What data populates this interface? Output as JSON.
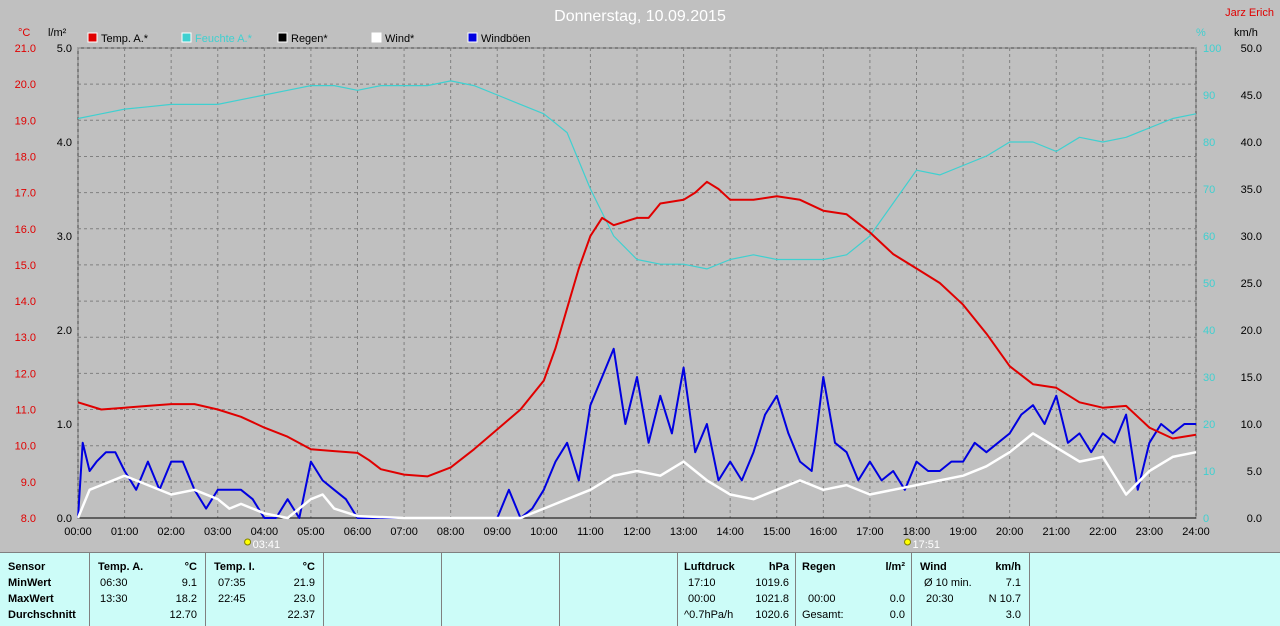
{
  "header": {
    "title": "Donnerstag, 10.09.2015",
    "author": "Jarz Erich"
  },
  "colors": {
    "temp": "#e00000",
    "humidity": "#3fd0d0",
    "rain": "#000000",
    "wind": "#ffffff",
    "gusts": "#0000e0",
    "plot_bg": "#c0c0c0"
  },
  "chart_data": {
    "type": "line",
    "title": "Donnerstag, 10.09.2015",
    "x_ticks": [
      "00:00",
      "01:00",
      "02:00",
      "03:00",
      "04:00",
      "05:00",
      "06:00",
      "07:00",
      "08:00",
      "09:00",
      "10:00",
      "11:00",
      "12:00",
      "13:00",
      "14:00",
      "15:00",
      "16:00",
      "17:00",
      "18:00",
      "19:00",
      "20:00",
      "21:00",
      "22:00",
      "23:00",
      "24:00"
    ],
    "axes": {
      "temp": {
        "unit": "°C",
        "ylim": [
          8.0,
          21.0
        ],
        "ticks": [
          "21.0",
          "20.0",
          "19.0",
          "18.0",
          "17.0",
          "16.0",
          "15.0",
          "14.0",
          "13.0",
          "12.0",
          "11.0",
          "10.0",
          "9.0",
          "8.0"
        ]
      },
      "rain": {
        "unit": "l/m²",
        "ylim": [
          0.0,
          5.0
        ],
        "ticks": [
          "5.0",
          "4.0",
          "3.0",
          "2.0",
          "1.0",
          "0.0"
        ]
      },
      "humidity": {
        "unit": "%",
        "ylim": [
          0,
          100
        ],
        "ticks": [
          "100",
          "90",
          "80",
          "70",
          "60",
          "50",
          "40",
          "30",
          "20",
          "10",
          "0"
        ]
      },
      "wind": {
        "unit": "km/h",
        "ylim": [
          0.0,
          50.0
        ],
        "ticks": [
          "50.0",
          "45.0",
          "40.0",
          "35.0",
          "30.0",
          "25.0",
          "20.0",
          "15.0",
          "10.0",
          "5.0",
          "0.0"
        ]
      }
    },
    "grid": true,
    "legend": [
      {
        "name": "Temp. A.*"
      },
      {
        "name": "Feuchte A.*"
      },
      {
        "name": "Regen*"
      },
      {
        "name": "Wind*"
      },
      {
        "name": "Windböen"
      }
    ],
    "series": [
      {
        "name": "Temp. A.*",
        "axis": "temp",
        "x": [
          0,
          0.5,
          1,
          1.5,
          2,
          2.5,
          3,
          3.5,
          4,
          4.5,
          5,
          5.5,
          6,
          6.25,
          6.5,
          7,
          7.5,
          8,
          8.5,
          9,
          9.5,
          10,
          10.25,
          10.5,
          10.75,
          11,
          11.25,
          11.5,
          12,
          12.25,
          12.5,
          13,
          13.25,
          13.5,
          13.75,
          14,
          14.5,
          15,
          15.5,
          16,
          16.5,
          17,
          17.5,
          18,
          18.5,
          19,
          19.5,
          20,
          20.5,
          21,
          21.5,
          22,
          22.5,
          23,
          23.5,
          24
        ],
        "y": [
          11.2,
          11.0,
          11.05,
          11.1,
          11.15,
          11.15,
          11.0,
          10.8,
          10.5,
          10.25,
          9.9,
          9.85,
          9.8,
          9.6,
          9.35,
          9.2,
          9.15,
          9.4,
          9.9,
          10.45,
          11.0,
          11.8,
          12.7,
          13.8,
          14.9,
          15.8,
          16.3,
          16.1,
          16.3,
          16.3,
          16.7,
          16.8,
          17.0,
          17.3,
          17.1,
          16.8,
          16.8,
          16.9,
          16.8,
          16.5,
          16.4,
          15.9,
          15.3,
          14.9,
          14.5,
          13.9,
          13.1,
          12.2,
          11.7,
          11.6,
          11.2,
          11.05,
          11.1,
          10.5,
          10.2,
          10.3
        ]
      },
      {
        "name": "Feuchte A.*",
        "axis": "humidity",
        "x": [
          0,
          0.5,
          1,
          1.5,
          2,
          2.5,
          3,
          3.5,
          4,
          4.5,
          5,
          5.5,
          6,
          6.5,
          7,
          7.5,
          8,
          8.5,
          9,
          9.5,
          10,
          10.5,
          11,
          11.5,
          12,
          12.5,
          13,
          13.5,
          14,
          14.5,
          15,
          15.5,
          16,
          16.5,
          17,
          17.5,
          18,
          18.5,
          19,
          19.5,
          20,
          20.5,
          21,
          21.5,
          22,
          22.5,
          23,
          23.5,
          24
        ],
        "y": [
          85,
          86,
          87,
          87.5,
          88,
          88,
          88,
          89,
          90,
          91,
          92,
          92,
          91,
          92,
          92,
          92,
          93,
          92,
          90,
          88,
          86,
          82,
          70,
          60,
          55,
          54,
          54,
          53,
          55,
          56,
          55,
          55,
          55,
          56,
          60,
          67,
          74,
          73,
          75,
          77,
          80,
          80,
          78,
          81,
          80,
          81,
          83,
          85,
          86
        ]
      },
      {
        "name": "Regen*",
        "axis": "rain",
        "x": [
          0,
          24
        ],
        "y": [
          0,
          0
        ]
      },
      {
        "name": "Wind*",
        "axis": "wind",
        "x": [
          0,
          0.25,
          0.5,
          1,
          1.5,
          2,
          2.5,
          3,
          3.25,
          3.5,
          4,
          4.5,
          5,
          5.25,
          5.5,
          6,
          7,
          8,
          9,
          9.5,
          10,
          10.5,
          11,
          11.5,
          12,
          12.5,
          13,
          13.5,
          14,
          14.5,
          15,
          15.5,
          16,
          16.5,
          17,
          17.5,
          18,
          18.5,
          19,
          19.5,
          20,
          20.5,
          21,
          21.5,
          22,
          22.5,
          23,
          23.5,
          24
        ],
        "y": [
          0,
          3,
          3.5,
          4.5,
          3.5,
          2.5,
          3,
          2,
          1,
          1.5,
          0.5,
          0,
          2,
          2.5,
          1,
          0.2,
          0,
          0,
          0,
          0,
          1,
          2,
          3,
          4.5,
          5,
          4.5,
          6,
          4,
          2.5,
          2,
          3,
          4,
          3,
          3.5,
          2.5,
          3,
          3.5,
          4,
          4.5,
          5.5,
          7,
          9,
          7.5,
          6,
          6.5,
          2.5,
          5,
          6.5,
          7
        ]
      },
      {
        "name": "Windböen",
        "axis": "wind",
        "x": [
          0,
          0.1,
          0.25,
          0.4,
          0.6,
          0.8,
          1,
          1.25,
          1.5,
          1.75,
          2,
          2.25,
          2.5,
          2.75,
          3,
          3.25,
          3.5,
          3.75,
          4,
          4.25,
          4.5,
          4.75,
          5,
          5.25,
          5.5,
          5.75,
          6,
          6.5,
          7,
          8,
          9,
          9.25,
          9.5,
          9.75,
          10,
          10.25,
          10.5,
          10.75,
          11,
          11.25,
          11.5,
          11.75,
          12,
          12.25,
          12.5,
          12.75,
          13,
          13.25,
          13.5,
          13.75,
          14,
          14.25,
          14.5,
          14.75,
          15,
          15.25,
          15.5,
          15.75,
          16,
          16.25,
          16.5,
          16.75,
          17,
          17.25,
          17.5,
          17.75,
          18,
          18.25,
          18.5,
          18.75,
          19,
          19.25,
          19.5,
          19.75,
          20,
          20.25,
          20.5,
          20.75,
          21,
          21.25,
          21.5,
          21.75,
          22,
          22.25,
          22.5,
          22.75,
          23,
          23.25,
          23.5,
          23.75,
          24
        ],
        "y": [
          0,
          8,
          5,
          6,
          7,
          7,
          5,
          3,
          6,
          3,
          6,
          6,
          3,
          1,
          3,
          3,
          3,
          2,
          0,
          0,
          2,
          0,
          6,
          4,
          3,
          2,
          0,
          0,
          0,
          0,
          0,
          3,
          0,
          1,
          3,
          6,
          8,
          4,
          12,
          15,
          18,
          10,
          15,
          8,
          13,
          9,
          16,
          7,
          10,
          4,
          6,
          4,
          7,
          11,
          13,
          9,
          6,
          5,
          15,
          8,
          7,
          4,
          6,
          4,
          5,
          3,
          6,
          5,
          5,
          6,
          6,
          8,
          7,
          8,
          9,
          11,
          12,
          10,
          13,
          8,
          9,
          7,
          9,
          8,
          11,
          3,
          8,
          10,
          9,
          10,
          10
        ]
      }
    ]
  },
  "axis_labels": {
    "temp_unit": "°C",
    "rain_unit": "l/m²",
    "humidity_unit": "%",
    "wind_unit": "km/h"
  },
  "sun": {
    "rise": "03:41",
    "set": "17:51"
  },
  "table": {
    "sensor": {
      "h": "Sensor",
      "min": "MinWert",
      "max": "MaxWert",
      "avg": "Durchschnitt"
    },
    "temp_a": {
      "h": "Temp. A.",
      "unit": "°C",
      "min_time": "06:30",
      "min": "9.1",
      "max_time": "13:30",
      "max": "18.2",
      "avg": "12.70"
    },
    "temp_i": {
      "h": "Temp. I.",
      "unit": "°C",
      "min_time": "07:35",
      "min": "21.9",
      "max_time": "22:45",
      "max": "23.0",
      "avg": "22.37"
    },
    "pressure": {
      "h": "Luftdruck",
      "unit": "hPa",
      "r1a": "17:10",
      "r1b": "1019.6",
      "r2a": "00:00",
      "r2b": "1021.8",
      "r3a": "^0.7hPa/h",
      "r3b": "1020.6"
    },
    "rain": {
      "h": "Regen",
      "unit": "l/m²",
      "r1a": "",
      "r1b": "",
      "r2a": "00:00",
      "r2b": "0.0",
      "r3a": "Gesamt:",
      "r3b": "0.0"
    },
    "wind": {
      "h": "Wind",
      "unit": "km/h",
      "r1a": "Ø 10 min.",
      "r1b": "7.1",
      "r2a": "20:30",
      "r2b": "N 10.7",
      "r3a": "",
      "r3b": "3.0"
    }
  }
}
